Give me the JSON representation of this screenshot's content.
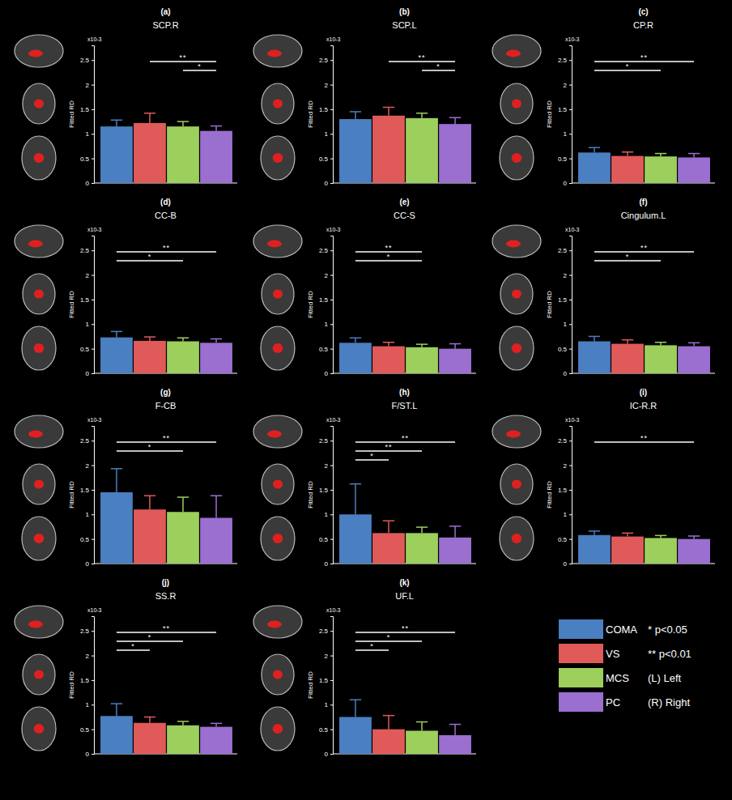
{
  "chart_data": [
    {
      "type": "bar",
      "letter": "(a)",
      "title": "SCP.R",
      "ylabel": "Fitted RD",
      "y_multiplier": "x10-3",
      "categories": [
        "COMA",
        "VS",
        "MCS",
        "PC"
      ],
      "colors": [
        "#4a7fc1",
        "#e05a5a",
        "#9ccf5c",
        "#9a6fd0"
      ],
      "values": [
        1.15,
        1.22,
        1.15,
        1.06
      ],
      "errors": [
        0.13,
        0.2,
        0.1,
        0.1
      ],
      "ylim": [
        0,
        2.8
      ],
      "yticks": [
        0,
        0.5,
        1,
        1.5,
        2,
        2.5
      ],
      "tick_labels": "y",
      "legend": "bottom-right",
      "significance": [
        {
          "groups": [
            "VS",
            "PC"
          ],
          "label": "**"
        },
        {
          "groups": [
            "MCS",
            "PC"
          ],
          "label": "*"
        }
      ]
    },
    {
      "type": "bar",
      "letter": "(b)",
      "title": "SCP.L",
      "ylabel": "Fitted RD",
      "y_multiplier": "x10-3",
      "categories": [
        "COMA",
        "VS",
        "MCS",
        "PC"
      ],
      "colors": [
        "#4a7fc1",
        "#e05a5a",
        "#9ccf5c",
        "#9a6fd0"
      ],
      "values": [
        1.3,
        1.37,
        1.32,
        1.2
      ],
      "errors": [
        0.15,
        0.17,
        0.1,
        0.13
      ],
      "ylim": [
        0,
        2.8
      ],
      "yticks": [
        0,
        0.5,
        1,
        1.5,
        2,
        2.5
      ],
      "tick_labels": "y",
      "significance": [
        {
          "groups": [
            "VS",
            "PC"
          ],
          "label": "**"
        },
        {
          "groups": [
            "MCS",
            "PC"
          ],
          "label": "*"
        }
      ]
    },
    {
      "type": "bar",
      "letter": "(c)",
      "title": "CP.R",
      "ylabel": "Fitted RD",
      "y_multiplier": "x10-3",
      "categories": [
        "COMA",
        "VS",
        "MCS",
        "PC"
      ],
      "colors": [
        "#4a7fc1",
        "#e05a5a",
        "#9ccf5c",
        "#9a6fd0"
      ],
      "values": [
        0.62,
        0.55,
        0.54,
        0.52
      ],
      "errors": [
        0.1,
        0.08,
        0.06,
        0.08
      ],
      "ylim": [
        0,
        2.8
      ],
      "yticks": [
        0,
        0.5,
        1,
        1.5,
        2,
        2.5
      ],
      "tick_labels": "y",
      "significance": [
        {
          "groups": [
            "COMA",
            "PC"
          ],
          "label": "**"
        },
        {
          "groups": [
            "COMA",
            "MCS"
          ],
          "label": "*"
        }
      ]
    },
    {
      "type": "bar",
      "letter": "(d)",
      "title": "CC-B",
      "ylabel": "Fitted RD",
      "y_multiplier": "x10-3",
      "categories": [
        "COMA",
        "VS",
        "MCS",
        "PC"
      ],
      "colors": [
        "#4a7fc1",
        "#e05a5a",
        "#9ccf5c",
        "#9a6fd0"
      ],
      "values": [
        0.73,
        0.66,
        0.65,
        0.62
      ],
      "errors": [
        0.12,
        0.08,
        0.07,
        0.08
      ],
      "ylim": [
        0,
        2.8
      ],
      "yticks": [
        0,
        0.5,
        1,
        1.5,
        2,
        2.5
      ],
      "tick_labels": "y",
      "significance": [
        {
          "groups": [
            "COMA",
            "PC"
          ],
          "label": "**"
        },
        {
          "groups": [
            "COMA",
            "MCS"
          ],
          "label": "*"
        }
      ]
    },
    {
      "type": "bar",
      "letter": "(e)",
      "title": "CC-S",
      "ylabel": "Fitted RD",
      "y_multiplier": "x10-3",
      "categories": [
        "COMA",
        "VS",
        "MCS",
        "PC"
      ],
      "colors": [
        "#4a7fc1",
        "#e05a5a",
        "#9ccf5c",
        "#9a6fd0"
      ],
      "values": [
        0.62,
        0.55,
        0.53,
        0.5
      ],
      "errors": [
        0.1,
        0.08,
        0.06,
        0.1
      ],
      "ylim": [
        0,
        2.8
      ],
      "yticks": [
        0,
        0.5,
        1,
        1.5,
        2,
        2.5
      ],
      "tick_labels": "y",
      "significance": [
        {
          "groups": [
            "COMA",
            "MCS"
          ],
          "label": "**"
        },
        {
          "groups": [
            "COMA",
            "MCS"
          ],
          "label": "*"
        }
      ]
    },
    {
      "type": "bar",
      "letter": "(f)",
      "title": "Cingulum.L",
      "ylabel": "Fitted RD",
      "y_multiplier": "x10-3",
      "categories": [
        "COMA",
        "VS",
        "MCS",
        "PC"
      ],
      "colors": [
        "#4a7fc1",
        "#e05a5a",
        "#9ccf5c",
        "#9a6fd0"
      ],
      "values": [
        0.65,
        0.6,
        0.57,
        0.55
      ],
      "errors": [
        0.1,
        0.08,
        0.06,
        0.07
      ],
      "ylim": [
        0,
        2.8
      ],
      "yticks": [
        0,
        0.5,
        1,
        1.5,
        2,
        2.5
      ],
      "tick_labels": "y",
      "significance": [
        {
          "groups": [
            "COMA",
            "PC"
          ],
          "label": "**"
        },
        {
          "groups": [
            "COMA",
            "MCS"
          ],
          "label": "*"
        }
      ]
    },
    {
      "type": "bar",
      "letter": "(g)",
      "title": "F-CB",
      "ylabel": "Fitted RD",
      "y_multiplier": "x10-3",
      "categories": [
        "COMA",
        "VS",
        "MCS",
        "PC"
      ],
      "colors": [
        "#4a7fc1",
        "#e05a5a",
        "#9ccf5c",
        "#9a6fd0"
      ],
      "values": [
        1.45,
        1.1,
        1.05,
        0.93
      ],
      "errors": [
        0.48,
        0.28,
        0.3,
        0.45
      ],
      "ylim": [
        0,
        2.8
      ],
      "yticks": [
        0,
        0.5,
        1,
        1.5,
        2,
        2.5
      ],
      "tick_labels": "y",
      "significance": [
        {
          "groups": [
            "COMA",
            "PC"
          ],
          "label": "**"
        },
        {
          "groups": [
            "COMA",
            "MCS"
          ],
          "label": "*"
        }
      ]
    },
    {
      "type": "bar",
      "letter": "(h)",
      "title": "F/ST.L",
      "ylabel": "Fitted RD",
      "y_multiplier": "x10-3",
      "categories": [
        "COMA",
        "VS",
        "MCS",
        "PC"
      ],
      "colors": [
        "#4a7fc1",
        "#e05a5a",
        "#9ccf5c",
        "#9a6fd0"
      ],
      "values": [
        1.0,
        0.62,
        0.62,
        0.53
      ],
      "errors": [
        0.62,
        0.25,
        0.12,
        0.23
      ],
      "ylim": [
        0,
        2.8
      ],
      "yticks": [
        0,
        0.5,
        1,
        1.5,
        2,
        2.5
      ],
      "tick_labels": "y",
      "significance": [
        {
          "groups": [
            "COMA",
            "PC"
          ],
          "label": "**"
        },
        {
          "groups": [
            "COMA",
            "MCS"
          ],
          "label": "**"
        },
        {
          "groups": [
            "COMA",
            "VS"
          ],
          "label": "*"
        }
      ]
    },
    {
      "type": "bar",
      "letter": "(i)",
      "title": "IC-R.R",
      "ylabel": "Fitted RD",
      "y_multiplier": "x10-3",
      "categories": [
        "COMA",
        "VS",
        "MCS",
        "PC"
      ],
      "colors": [
        "#4a7fc1",
        "#e05a5a",
        "#9ccf5c",
        "#9a6fd0"
      ],
      "values": [
        0.58,
        0.55,
        0.52,
        0.5
      ],
      "errors": [
        0.08,
        0.07,
        0.05,
        0.06
      ],
      "ylim": [
        0,
        2.8
      ],
      "yticks": [
        0,
        0.5,
        1,
        1.5,
        2,
        2.5
      ],
      "tick_labels": "y",
      "significance": [
        {
          "groups": [
            "COMA",
            "PC"
          ],
          "label": "**"
        }
      ]
    },
    {
      "type": "bar",
      "letter": "(j)",
      "title": "SS.R",
      "ylabel": "Fitted RD",
      "y_multiplier": "x10-3",
      "categories": [
        "COMA",
        "VS",
        "MCS",
        "PC"
      ],
      "colors": [
        "#4a7fc1",
        "#e05a5a",
        "#9ccf5c",
        "#9a6fd0"
      ],
      "values": [
        0.77,
        0.63,
        0.58,
        0.55
      ],
      "errors": [
        0.25,
        0.12,
        0.08,
        0.07
      ],
      "ylim": [
        0,
        2.8
      ],
      "yticks": [
        0,
        0.5,
        1,
        1.5,
        2,
        2.5
      ],
      "tick_labels": "y",
      "significance": [
        {
          "groups": [
            "COMA",
            "PC"
          ],
          "label": "**"
        },
        {
          "groups": [
            "COMA",
            "MCS"
          ],
          "label": "*"
        },
        {
          "groups": [
            "COMA",
            "VS"
          ],
          "label": "*"
        }
      ]
    },
    {
      "type": "bar",
      "letter": "(k)",
      "title": "UF.L",
      "ylabel": "Fitted RD",
      "y_multiplier": "x10-3",
      "categories": [
        "COMA",
        "VS",
        "MCS",
        "PC"
      ],
      "colors": [
        "#4a7fc1",
        "#e05a5a",
        "#9ccf5c",
        "#9a6fd0"
      ],
      "values": [
        0.75,
        0.5,
        0.47,
        0.38
      ],
      "errors": [
        0.35,
        0.28,
        0.18,
        0.22
      ],
      "ylim": [
        0,
        2.8
      ],
      "yticks": [
        0,
        0.5,
        1,
        1.5,
        2,
        2.5
      ],
      "tick_labels": "y",
      "significance": [
        {
          "groups": [
            "COMA",
            "PC"
          ],
          "label": "**"
        },
        {
          "groups": [
            "COMA",
            "MCS"
          ],
          "label": "*"
        },
        {
          "groups": [
            "COMA",
            "VS"
          ],
          "label": "*"
        }
      ]
    }
  ],
  "legend_notes": [
    "* p<0.05",
    "** p<0.01",
    "(L) Left",
    "(R) Right"
  ]
}
